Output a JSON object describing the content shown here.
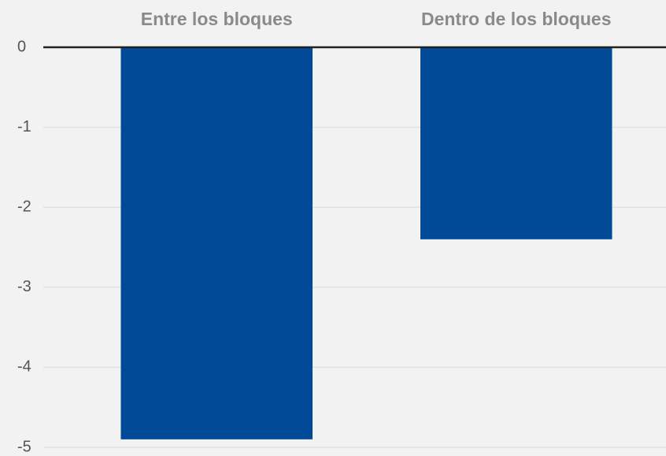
{
  "chart_data": {
    "type": "bar",
    "categories": [
      "Entre los bloques",
      "Dentro de los bloques"
    ],
    "values": [
      -4.9,
      -2.4
    ],
    "color": "#004a97",
    "ylim": [
      -5,
      0
    ],
    "yticks": [
      0,
      -1,
      -2,
      -3,
      -4,
      -5
    ],
    "grid": true
  }
}
